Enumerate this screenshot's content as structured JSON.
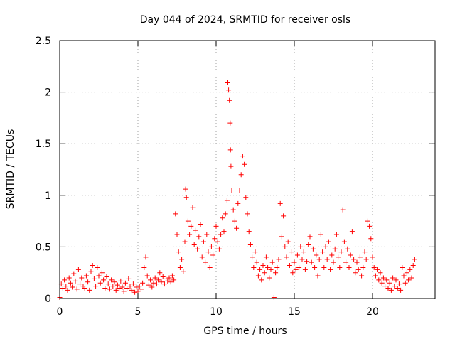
{
  "chart_data": {
    "type": "scatter",
    "title": "Day 044 of 2024, SRMTID for receiver osls",
    "xlabel": "GPS time / hours",
    "ylabel": "SRMTID / TECUs",
    "xlim": [
      0,
      24
    ],
    "ylim": [
      0,
      2.5
    ],
    "x_ticks": [
      0,
      5,
      10,
      15,
      20
    ],
    "x_tick_labels": [
      "0",
      "5",
      "10",
      "15",
      "20"
    ],
    "y_ticks": [
      0,
      0.5,
      1,
      1.5,
      2,
      2.5
    ],
    "y_tick_labels": [
      "0",
      "0.5",
      "1",
      "1.5",
      "2",
      "2.5"
    ],
    "grid": true,
    "marker": "+",
    "series": [
      {
        "name": "SRMTID",
        "color": "#ff0000",
        "points": [
          [
            0.0,
            0.01
          ],
          [
            0.1,
            0.14
          ],
          [
            0.2,
            0.1
          ],
          [
            0.3,
            0.18
          ],
          [
            0.4,
            0.12
          ],
          [
            0.5,
            0.08
          ],
          [
            0.6,
            0.2
          ],
          [
            0.7,
            0.15
          ],
          [
            0.8,
            0.11
          ],
          [
            0.9,
            0.24
          ],
          [
            1.0,
            0.17
          ],
          [
            1.1,
            0.09
          ],
          [
            1.2,
            0.28
          ],
          [
            1.3,
            0.14
          ],
          [
            1.4,
            0.2
          ],
          [
            1.5,
            0.12
          ],
          [
            1.6,
            0.1
          ],
          [
            1.7,
            0.22
          ],
          [
            1.8,
            0.16
          ],
          [
            1.9,
            0.08
          ],
          [
            2.0,
            0.26
          ],
          [
            2.1,
            0.32
          ],
          [
            2.2,
            0.19
          ],
          [
            2.3,
            0.12
          ],
          [
            2.4,
            0.3
          ],
          [
            2.5,
            0.22
          ],
          [
            2.6,
            0.15
          ],
          [
            2.7,
            0.25
          ],
          [
            2.8,
            0.18
          ],
          [
            2.9,
            0.1
          ],
          [
            3.0,
            0.21
          ],
          [
            3.1,
            0.14
          ],
          [
            3.2,
            0.09
          ],
          [
            3.3,
            0.18
          ],
          [
            3.4,
            0.12
          ],
          [
            3.5,
            0.16
          ],
          [
            3.6,
            0.08
          ],
          [
            3.7,
            0.13
          ],
          [
            3.8,
            0.1
          ],
          [
            3.9,
            0.17
          ],
          [
            4.0,
            0.11
          ],
          [
            4.1,
            0.07
          ],
          [
            4.2,
            0.15
          ],
          [
            4.3,
            0.1
          ],
          [
            4.4,
            0.19
          ],
          [
            4.5,
            0.12
          ],
          [
            4.6,
            0.08
          ],
          [
            4.7,
            0.14
          ],
          [
            4.8,
            0.06
          ],
          [
            4.9,
            0.11
          ],
          [
            5.0,
            0.07
          ],
          [
            5.1,
            0.12
          ],
          [
            5.2,
            0.09
          ],
          [
            5.3,
            0.15
          ],
          [
            5.4,
            0.3
          ],
          [
            5.5,
            0.4
          ],
          [
            5.6,
            0.22
          ],
          [
            5.7,
            0.13
          ],
          [
            5.8,
            0.18
          ],
          [
            5.9,
            0.11
          ],
          [
            6.0,
            0.15
          ],
          [
            6.1,
            0.2
          ],
          [
            6.2,
            0.14
          ],
          [
            6.3,
            0.18
          ],
          [
            6.4,
            0.25
          ],
          [
            6.5,
            0.16
          ],
          [
            6.6,
            0.21
          ],
          [
            6.7,
            0.14
          ],
          [
            6.8,
            0.19
          ],
          [
            6.9,
            0.17
          ],
          [
            7.0,
            0.2
          ],
          [
            7.1,
            0.16
          ],
          [
            7.2,
            0.22
          ],
          [
            7.3,
            0.18
          ],
          [
            7.4,
            0.82
          ],
          [
            7.5,
            0.62
          ],
          [
            7.6,
            0.45
          ],
          [
            7.7,
            0.3
          ],
          [
            7.8,
            0.38
          ],
          [
            7.9,
            0.26
          ],
          [
            8.0,
            0.55
          ],
          [
            8.05,
            1.06
          ],
          [
            8.1,
            0.98
          ],
          [
            8.2,
            0.75
          ],
          [
            8.3,
            0.62
          ],
          [
            8.4,
            0.7
          ],
          [
            8.5,
            0.88
          ],
          [
            8.6,
            0.52
          ],
          [
            8.7,
            0.66
          ],
          [
            8.8,
            0.48
          ],
          [
            8.9,
            0.6
          ],
          [
            9.0,
            0.72
          ],
          [
            9.1,
            0.4
          ],
          [
            9.2,
            0.55
          ],
          [
            9.3,
            0.35
          ],
          [
            9.4,
            0.62
          ],
          [
            9.5,
            0.45
          ],
          [
            9.6,
            0.3
          ],
          [
            9.7,
            0.5
          ],
          [
            9.8,
            0.42
          ],
          [
            9.9,
            0.58
          ],
          [
            10.0,
            0.7
          ],
          [
            10.1,
            0.55
          ],
          [
            10.2,
            0.48
          ],
          [
            10.3,
            0.62
          ],
          [
            10.4,
            0.78
          ],
          [
            10.5,
            0.65
          ],
          [
            10.6,
            0.82
          ],
          [
            10.7,
            0.95
          ],
          [
            10.75,
            2.09
          ],
          [
            10.8,
            2.02
          ],
          [
            10.85,
            1.92
          ],
          [
            10.9,
            1.7
          ],
          [
            10.92,
            1.44
          ],
          [
            10.95,
            1.28
          ],
          [
            11.0,
            1.05
          ],
          [
            11.1,
            0.86
          ],
          [
            11.2,
            0.75
          ],
          [
            11.3,
            0.68
          ],
          [
            11.4,
            0.92
          ],
          [
            11.5,
            1.05
          ],
          [
            11.6,
            1.2
          ],
          [
            11.7,
            1.38
          ],
          [
            11.8,
            1.3
          ],
          [
            11.9,
            0.98
          ],
          [
            12.0,
            0.82
          ],
          [
            12.1,
            0.65
          ],
          [
            12.2,
            0.52
          ],
          [
            12.3,
            0.4
          ],
          [
            12.4,
            0.3
          ],
          [
            12.5,
            0.45
          ],
          [
            12.6,
            0.35
          ],
          [
            12.7,
            0.22
          ],
          [
            12.8,
            0.28
          ],
          [
            12.9,
            0.18
          ],
          [
            13.0,
            0.32
          ],
          [
            13.1,
            0.25
          ],
          [
            13.2,
            0.4
          ],
          [
            13.3,
            0.3
          ],
          [
            13.4,
            0.2
          ],
          [
            13.5,
            0.28
          ],
          [
            13.6,
            0.35
          ],
          [
            13.7,
            0.01
          ],
          [
            13.8,
            0.25
          ],
          [
            13.9,
            0.3
          ],
          [
            14.0,
            0.38
          ],
          [
            14.1,
            0.92
          ],
          [
            14.2,
            0.6
          ],
          [
            14.3,
            0.8
          ],
          [
            14.4,
            0.5
          ],
          [
            14.5,
            0.4
          ],
          [
            14.6,
            0.55
          ],
          [
            14.7,
            0.32
          ],
          [
            14.8,
            0.45
          ],
          [
            14.9,
            0.25
          ],
          [
            15.0,
            0.35
          ],
          [
            15.1,
            0.28
          ],
          [
            15.2,
            0.42
          ],
          [
            15.3,
            0.3
          ],
          [
            15.4,
            0.5
          ],
          [
            15.5,
            0.38
          ],
          [
            15.6,
            0.45
          ],
          [
            15.7,
            0.28
          ],
          [
            15.8,
            0.36
          ],
          [
            15.9,
            0.52
          ],
          [
            16.0,
            0.6
          ],
          [
            16.1,
            0.35
          ],
          [
            16.2,
            0.48
          ],
          [
            16.3,
            0.3
          ],
          [
            16.4,
            0.42
          ],
          [
            16.5,
            0.22
          ],
          [
            16.6,
            0.38
          ],
          [
            16.7,
            0.62
          ],
          [
            16.8,
            0.45
          ],
          [
            16.9,
            0.3
          ],
          [
            17.0,
            0.5
          ],
          [
            17.1,
            0.38
          ],
          [
            17.2,
            0.55
          ],
          [
            17.3,
            0.28
          ],
          [
            17.4,
            0.42
          ],
          [
            17.5,
            0.35
          ],
          [
            17.6,
            0.48
          ],
          [
            17.7,
            0.62
          ],
          [
            17.8,
            0.4
          ],
          [
            17.9,
            0.3
          ],
          [
            18.0,
            0.45
          ],
          [
            18.1,
            0.86
          ],
          [
            18.2,
            0.55
          ],
          [
            18.3,
            0.35
          ],
          [
            18.4,
            0.48
          ],
          [
            18.5,
            0.3
          ],
          [
            18.6,
            0.42
          ],
          [
            18.7,
            0.65
          ],
          [
            18.8,
            0.38
          ],
          [
            18.9,
            0.25
          ],
          [
            19.0,
            0.35
          ],
          [
            19.1,
            0.28
          ],
          [
            19.2,
            0.4
          ],
          [
            19.3,
            0.22
          ],
          [
            19.4,
            0.3
          ],
          [
            19.5,
            0.45
          ],
          [
            19.6,
            0.38
          ],
          [
            19.7,
            0.75
          ],
          [
            19.8,
            0.7
          ],
          [
            19.9,
            0.58
          ],
          [
            20.0,
            0.4
          ],
          [
            20.1,
            0.3
          ],
          [
            20.2,
            0.22
          ],
          [
            20.3,
            0.28
          ],
          [
            20.4,
            0.18
          ],
          [
            20.5,
            0.25
          ],
          [
            20.6,
            0.15
          ],
          [
            20.7,
            0.2
          ],
          [
            20.8,
            0.12
          ],
          [
            20.9,
            0.18
          ],
          [
            21.0,
            0.1
          ],
          [
            21.1,
            0.15
          ],
          [
            21.2,
            0.08
          ],
          [
            21.3,
            0.2
          ],
          [
            21.4,
            0.12
          ],
          [
            21.5,
            0.18
          ],
          [
            21.6,
            0.1
          ],
          [
            21.7,
            0.14
          ],
          [
            21.8,
            0.08
          ],
          [
            21.9,
            0.3
          ],
          [
            22.0,
            0.22
          ],
          [
            22.1,
            0.15
          ],
          [
            22.2,
            0.25
          ],
          [
            22.3,
            0.18
          ],
          [
            22.4,
            0.28
          ],
          [
            22.5,
            0.2
          ],
          [
            22.6,
            0.32
          ],
          [
            22.7,
            0.38
          ]
        ]
      }
    ]
  }
}
